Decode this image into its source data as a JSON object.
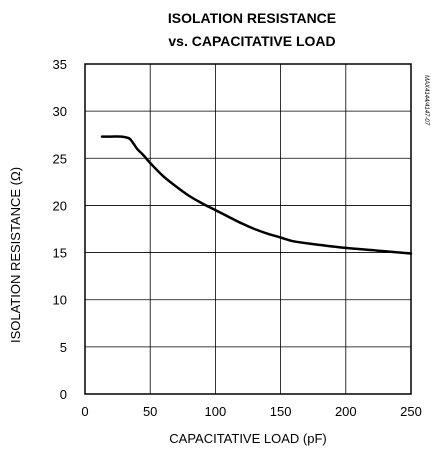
{
  "chart_data": {
    "type": "line",
    "title": [
      "ISOLATION RESISTANCE",
      "vs. CAPACITATIVE LOAD"
    ],
    "xlabel": "CAPACITATIVE LOAD (pF)",
    "ylabel": "ISOLATION RESISTANCE (Ω)",
    "xlim": [
      0,
      250
    ],
    "ylim": [
      0,
      35
    ],
    "xticks": [
      0,
      50,
      100,
      150,
      200,
      250
    ],
    "yticks": [
      0,
      5,
      10,
      15,
      20,
      25,
      30,
      35
    ],
    "grid": true,
    "side_note": "MAX4144/4147-07",
    "series": [
      {
        "color": "#000000",
        "x": [
          13,
          20,
          28,
          34,
          37,
          40,
          45,
          50,
          60,
          70,
          80,
          90,
          100,
          110,
          120,
          130,
          140,
          150,
          160,
          175,
          200,
          225,
          250
        ],
        "y": [
          27.3,
          27.3,
          27.3,
          27.1,
          26.6,
          26.0,
          25.3,
          24.5,
          23.1,
          22.0,
          21.0,
          20.2,
          19.5,
          18.8,
          18.1,
          17.5,
          17.0,
          16.6,
          16.2,
          15.9,
          15.5,
          15.2,
          14.9
        ]
      }
    ]
  }
}
